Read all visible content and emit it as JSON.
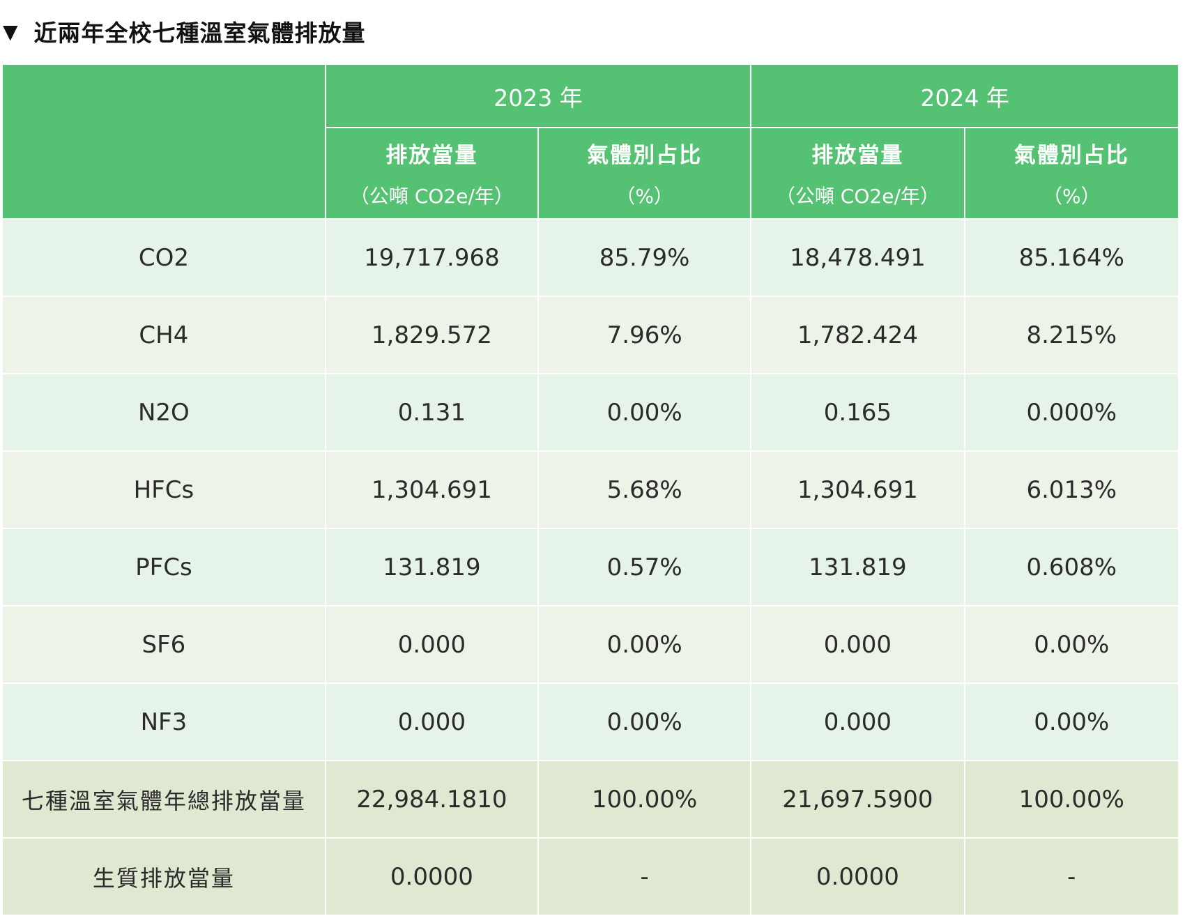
{
  "section": {
    "marker": "▼",
    "title": "近兩年全校七種溫室氣體排放量"
  },
  "table": {
    "years": [
      "2023 年",
      "2024 年"
    ],
    "sub_headers": {
      "emission_line1": "排放當量",
      "emission_line2": "（公噸 CO2e/年）",
      "share_line1": "氣體別占比",
      "share_line2": "（%）"
    },
    "rows": [
      {
        "gas": "CO2",
        "e2023": "19,717.968",
        "s2023": "85.79%",
        "e2024": "18,478.491",
        "s2024": "85.164%"
      },
      {
        "gas": "CH4",
        "e2023": "1,829.572",
        "s2023": "7.96%",
        "e2024": "1,782.424",
        "s2024": "8.215%"
      },
      {
        "gas": "N2O",
        "e2023": "0.131",
        "s2023": "0.00%",
        "e2024": "0.165",
        "s2024": "0.000%"
      },
      {
        "gas": "HFCs",
        "e2023": "1,304.691",
        "s2023": "5.68%",
        "e2024": "1,304.691",
        "s2024": "6.013%"
      },
      {
        "gas": "PFCs",
        "e2023": "131.819",
        "s2023": "0.57%",
        "e2024": "131.819",
        "s2024": "0.608%"
      },
      {
        "gas": "SF6",
        "e2023": "0.000",
        "s2023": "0.00%",
        "e2024": "0.000",
        "s2024": "0.00%"
      },
      {
        "gas": "NF3",
        "e2023": "0.000",
        "s2023": "0.00%",
        "e2024": "0.000",
        "s2024": "0.00%"
      },
      {
        "gas": "七種溫室氣體年總排放當量",
        "e2023": "22,984.1810",
        "s2023": "100.00%",
        "e2024": "21,697.5900",
        "s2024": "100.00%"
      },
      {
        "gas": "生質排放當量",
        "e2023": "0.0000",
        "s2023": "-",
        "e2024": "0.0000",
        "s2024": "-"
      }
    ]
  },
  "colors": {
    "header_green": "#55c172",
    "row_light": "#e6f3e8",
    "row_alt": "#eef3e8",
    "row_total": "#dfe8d0"
  }
}
